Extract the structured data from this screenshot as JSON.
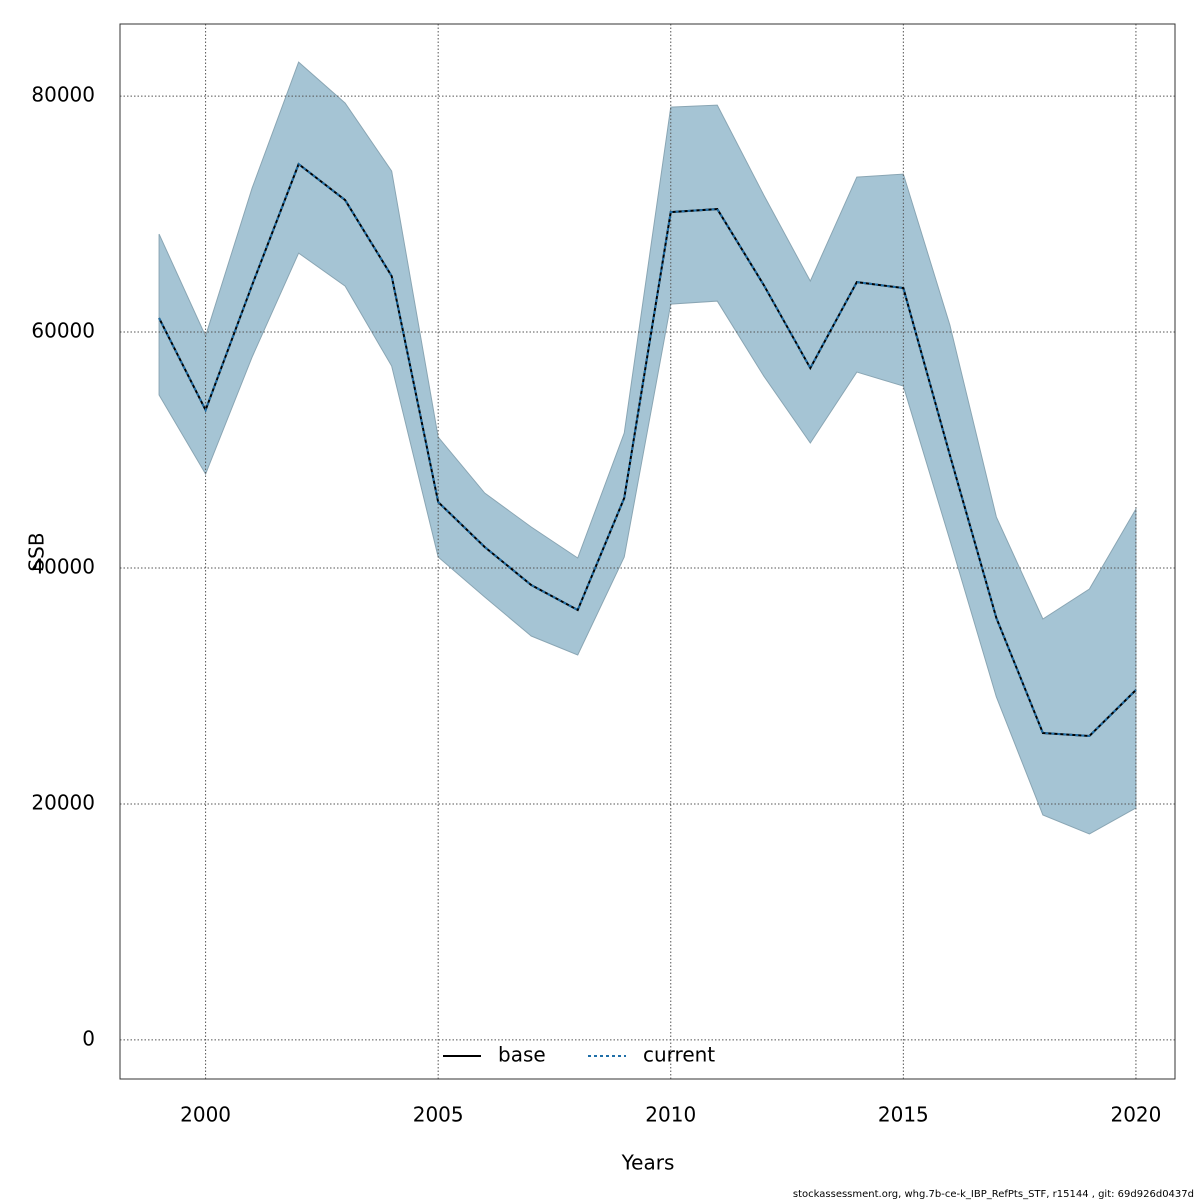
{
  "chart_data": {
    "type": "line",
    "xlabel": "Years",
    "ylabel": "SSB",
    "x": [
      1999,
      2000,
      2001,
      2002,
      2003,
      2004,
      2005,
      2006,
      2007,
      2008,
      2009,
      2010,
      2011,
      2012,
      2013,
      2014,
      2015,
      2016,
      2017,
      2018,
      2019,
      2020
    ],
    "band": {
      "color": "#a5c4d4",
      "upper": [
        68305,
        59661,
        72203,
        82881,
        79407,
        73644,
        51102,
        46356,
        43475,
        40847,
        51441,
        79068,
        79237,
        71610,
        64322,
        73136,
        73390,
        60593,
        44322,
        35678,
        38220,
        45000
      ],
      "lower": [
        54661,
        47966,
        57881,
        66695,
        63898,
        57119,
        40932,
        37542,
        34237,
        32627,
        40932,
        62373,
        62627,
        56271,
        50593,
        56610,
        55424,
        42373,
        29068,
        19068,
        17458,
        19661
      ]
    },
    "series": [
      {
        "name": "base",
        "color": "#000000",
        "style": "solid",
        "values": [
          61186,
          53390,
          63983,
          74237,
          71186,
          64746,
          45593,
          41780,
          38559,
          36441,
          45932,
          70169,
          70424,
          63983,
          56949,
          64237,
          63729,
          49576,
          35763,
          26017,
          25763,
          29661
        ]
      },
      {
        "name": "current",
        "color": "#1f6fa8",
        "style": "dotted",
        "values": [
          61186,
          53390,
          63983,
          74237,
          71186,
          64746,
          45593,
          41780,
          38559,
          36441,
          45932,
          70169,
          70424,
          63983,
          56949,
          64237,
          63729,
          49576,
          35763,
          26017,
          25763,
          29661
        ]
      }
    ],
    "xlim": [
      1998.16,
      2020.84
    ],
    "ylim": [
      -3312,
      86112
    ],
    "xticks": [
      2000,
      2005,
      2010,
      2015,
      2020
    ],
    "yticks": [
      0,
      20000,
      40000,
      60000,
      80000
    ],
    "grid": true,
    "legend": "bottom",
    "footer": "stockassessment.org, whg.7b-ce-k_IBP_RefPts_STF, r15144 , git: 69d926d0437d"
  }
}
